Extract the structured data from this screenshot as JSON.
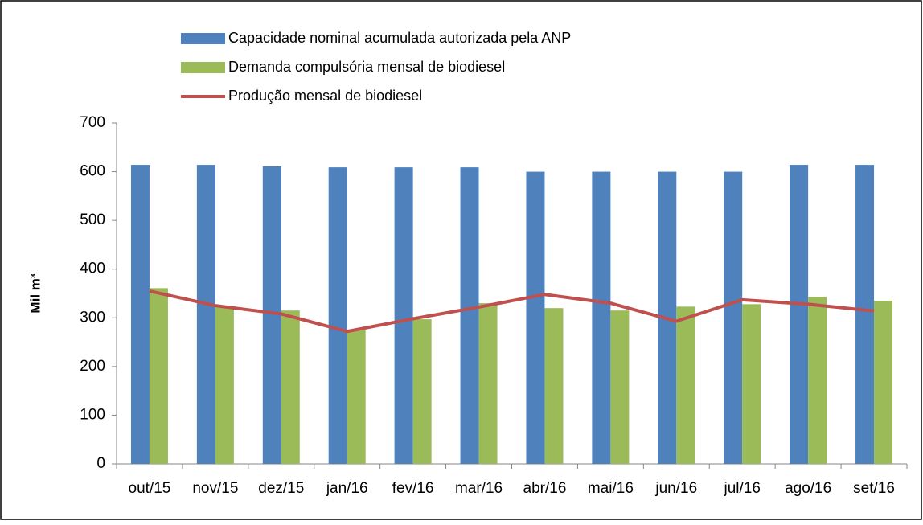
{
  "chart_data": {
    "type": "bar-line",
    "y_label": "Mil m³",
    "categories": [
      "out/15",
      "nov/15",
      "dez/15",
      "jan/16",
      "fev/16",
      "mar/16",
      "abr/16",
      "mai/16",
      "jun/16",
      "jul/16",
      "ago/16",
      "set/16"
    ],
    "series": [
      {
        "name": "Capacidade nominal acumulada autorizada pela ANP",
        "type": "bar",
        "color": "#4f81bd",
        "values": [
          614,
          614,
          611,
          609,
          609,
          609,
          600,
          600,
          600,
          600,
          614,
          614
        ]
      },
      {
        "name": "Demanda compulsória mensal de biodiesel",
        "type": "bar",
        "color": "#9bbb59",
        "values": [
          361,
          322,
          315,
          275,
          297,
          330,
          320,
          315,
          323,
          328,
          343,
          335
        ]
      },
      {
        "name": "Produção mensal de biodiesel",
        "type": "line",
        "color": "#c0504d",
        "values": [
          355,
          325,
          308,
          272,
          298,
          322,
          348,
          330,
          293,
          337,
          328,
          314
        ]
      }
    ],
    "ylim": [
      0,
      700
    ],
    "yticks": [
      0,
      100,
      200,
      300,
      400,
      500,
      600,
      700
    ],
    "grid": false
  }
}
